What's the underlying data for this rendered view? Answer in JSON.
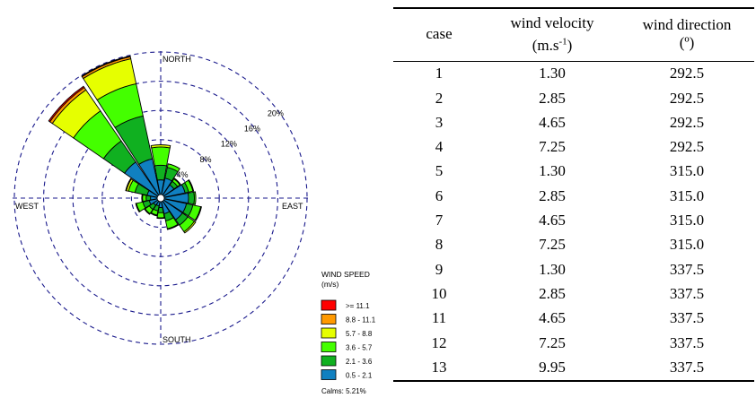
{
  "chart_data": {
    "type": "wind-rose",
    "direction_labels": {
      "north": "NORTH",
      "south": "SOUTH",
      "east": "EAST",
      "west": "WEST"
    },
    "ring_labels": [
      "4%",
      "8%",
      "12%",
      "16%",
      "20%"
    ],
    "ring_values": [
      4,
      8,
      12,
      16,
      20
    ],
    "legend": {
      "title_line1": "WIND SPEED",
      "title_line2": "(m/s)",
      "classes": [
        {
          "label": ">= 11.1",
          "color": "#ff0000"
        },
        {
          "label": "8.8 - 11.1",
          "color": "#ff9900"
        },
        {
          "label": "5.7 -  8.8",
          "color": "#e6ff00"
        },
        {
          "label": "3.6 -  5.7",
          "color": "#44ff00"
        },
        {
          "label": "2.1 -  3.6",
          "color": "#10b020"
        },
        {
          "label": "0.5 -  2.1",
          "color": "#1080c0"
        }
      ],
      "calms": "Calms: 5.21%"
    },
    "sector_order_from_center": [
      "0.5 -  2.1",
      "2.1 -  3.6",
      "3.6 -  5.7",
      "5.7 -  8.8",
      "8.8 - 11.1",
      ">= 11.1"
    ],
    "sectors": [
      {
        "dir": 0,
        "cum": [
          2.5,
          4.5,
          7.0,
          7.3,
          7.3,
          7.3
        ]
      },
      {
        "dir": 22.5,
        "cum": [
          2.8,
          4.3,
          4.8,
          4.8,
          4.8,
          4.8
        ]
      },
      {
        "dir": 45,
        "cum": [
          2.2,
          2.8,
          3.2,
          3.3,
          3.3,
          3.3
        ]
      },
      {
        "dir": 67.5,
        "cum": [
          3.4,
          3.9,
          4.5,
          4.6,
          4.6,
          4.6
        ]
      },
      {
        "dir": 90,
        "cum": [
          3.8,
          4.6,
          4.8,
          4.8,
          4.8,
          4.8
        ]
      },
      {
        "dir": 112.5,
        "cum": [
          3.6,
          4.5,
          5.6,
          5.7,
          5.7,
          5.7
        ]
      },
      {
        "dir": 135,
        "cum": [
          3.6,
          4.5,
          5.6,
          5.8,
          5.8,
          5.8
        ]
      },
      {
        "dir": 157.5,
        "cum": [
          2.2,
          3.2,
          4.3,
          4.4,
          4.4,
          4.4
        ]
      },
      {
        "dir": 180,
        "cum": [
          1.3,
          2.0,
          2.7,
          2.8,
          2.8,
          2.8
        ]
      },
      {
        "dir": 202.5,
        "cum": [
          1.1,
          1.8,
          2.4,
          2.5,
          2.5,
          2.5
        ]
      },
      {
        "dir": 225,
        "cum": [
          1.2,
          1.9,
          2.6,
          2.7,
          2.7,
          2.7
        ]
      },
      {
        "dir": 247.5,
        "cum": [
          1.6,
          2.5,
          3.4,
          3.5,
          3.5,
          3.5
        ]
      },
      {
        "dir": 270,
        "cum": [
          1.4,
          2.0,
          2.5,
          2.6,
          2.6,
          2.6
        ]
      },
      {
        "dir": 292.5,
        "cum": [
          1.9,
          3.6,
          4.5,
          4.8,
          4.9,
          4.9
        ]
      },
      {
        "dir": 315,
        "cum": [
          6.0,
          9.5,
          14.5,
          18.0,
          18.4,
          18.6
        ]
      },
      {
        "dir": 337.5,
        "cum": [
          5.5,
          11.5,
          16.0,
          19.5,
          19.8,
          19.9
        ]
      }
    ]
  },
  "table": {
    "headers": {
      "case": "case",
      "velocity_line1": "wind velocity",
      "velocity_line2_base": "(m.s",
      "velocity_line2_sup": "-1",
      "velocity_line2_end": ")",
      "direction_line1": "wind direction",
      "direction_line2": "(º)"
    },
    "rows": [
      {
        "case": "1",
        "velocity": "1.30",
        "direction": "292.5"
      },
      {
        "case": "2",
        "velocity": "2.85",
        "direction": "292.5"
      },
      {
        "case": "3",
        "velocity": "4.65",
        "direction": "292.5"
      },
      {
        "case": "4",
        "velocity": "7.25",
        "direction": "292.5"
      },
      {
        "case": "5",
        "velocity": "1.30",
        "direction": "315.0"
      },
      {
        "case": "6",
        "velocity": "2.85",
        "direction": "315.0"
      },
      {
        "case": "7",
        "velocity": "4.65",
        "direction": "315.0"
      },
      {
        "case": "8",
        "velocity": "7.25",
        "direction": "315.0"
      },
      {
        "case": "9",
        "velocity": "1.30",
        "direction": "337.5"
      },
      {
        "case": "10",
        "velocity": "2.85",
        "direction": "337.5"
      },
      {
        "case": "11",
        "velocity": "4.65",
        "direction": "337.5"
      },
      {
        "case": "12",
        "velocity": "7.25",
        "direction": "337.5"
      },
      {
        "case": "13",
        "velocity": "9.95",
        "direction": "337.5"
      }
    ]
  }
}
